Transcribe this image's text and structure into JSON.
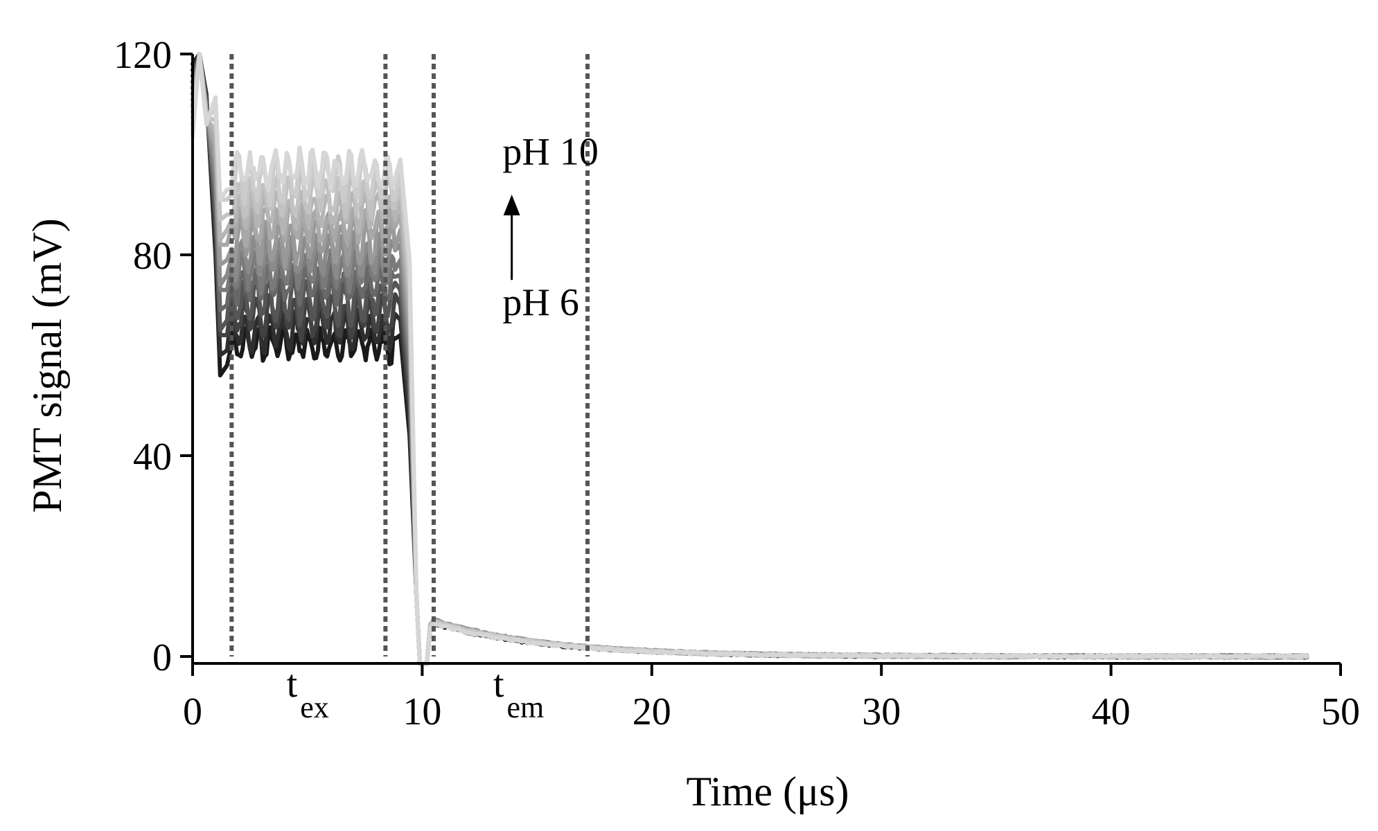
{
  "chart_data": {
    "type": "line",
    "xlabel": "Time (μs)",
    "ylabel": "PMT signal (mV)",
    "xlim": [
      0,
      50
    ],
    "ylim": [
      0,
      120
    ],
    "xticks": [
      "0",
      "10",
      "20",
      "30",
      "40",
      "50"
    ],
    "yticks": [
      "0",
      "40",
      "80",
      "120"
    ],
    "xtick_values": [
      0,
      10,
      20,
      30,
      40,
      50
    ],
    "ytick_values": [
      0,
      40,
      80,
      120
    ],
    "grid": false,
    "vertical_lines": [
      1.7,
      8.4,
      10.5,
      17.2
    ],
    "interval_labels": [
      {
        "base": "t",
        "sub": "ex",
        "x": 5.0
      },
      {
        "base": "t",
        "sub": "em",
        "x": 14.0
      }
    ],
    "annotations": [
      {
        "text": "pH 10",
        "x": 13.5,
        "y": 98
      },
      {
        "text": "pH 6",
        "x": 13.5,
        "y": 68
      }
    ],
    "arrow": {
      "from": [
        13.9,
        75
      ],
      "to": [
        13.9,
        92
      ]
    },
    "series": [
      {
        "plateau": 62,
        "peak": 6.5,
        "color": "#1a1a1a"
      },
      {
        "plateau": 65,
        "peak": 6.8,
        "color": "#2e2e2e"
      },
      {
        "plateau": 68,
        "peak": 7.0,
        "color": "#424242"
      },
      {
        "plateau": 71,
        "peak": 7.1,
        "color": "#555555"
      },
      {
        "plateau": 74,
        "peak": 7.2,
        "color": "#686868"
      },
      {
        "plateau": 77,
        "peak": 7.2,
        "color": "#7a7a7a"
      },
      {
        "plateau": 80,
        "peak": 7.3,
        "color": "#8a8a8a"
      },
      {
        "plateau": 83,
        "peak": 7.3,
        "color": "#999999"
      },
      {
        "plateau": 86,
        "peak": 7.2,
        "color": "#a8a8a8"
      },
      {
        "plateau": 89,
        "peak": 7.1,
        "color": "#b5b5b5"
      },
      {
        "plateau": 92,
        "peak": 7.0,
        "color": "#c2c2c2"
      },
      {
        "plateau": 95,
        "peak": 6.8,
        "color": "#cccccc"
      },
      {
        "plateau": 97,
        "peak": 6.5,
        "color": "#d6d6d6"
      }
    ]
  }
}
